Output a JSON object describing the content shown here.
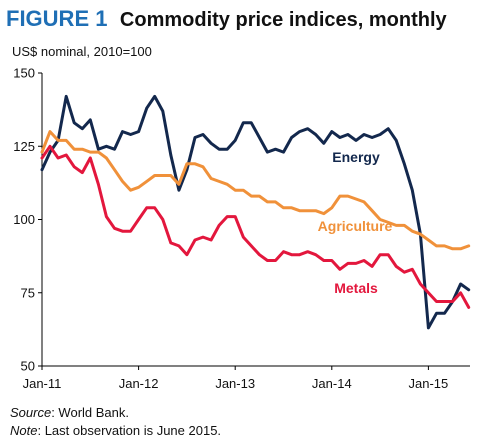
{
  "figure": {
    "label": "FIGURE 1",
    "title": "Commodity price indices, monthly",
    "units": "US$ nominal, 2010=100"
  },
  "footer": {
    "source_label": "Source",
    "source_text": ": World Bank.",
    "note_label": "Note",
    "note_text": ": Last observation is June 2015."
  },
  "chart_data": {
    "type": "line",
    "ylim": [
      50,
      150
    ],
    "yticks": [
      50,
      75,
      100,
      125,
      150
    ],
    "xticks": [
      "Jan-11",
      "Jan-12",
      "Jan-13",
      "Jan-14",
      "Jan-15"
    ],
    "x_start": "Jan-11",
    "x_end": "Jun-15",
    "grid": false,
    "series": [
      {
        "name": "Energy",
        "color": "#13284d",
        "values": [
          117,
          123,
          127,
          142,
          133,
          131,
          134,
          124,
          125,
          124,
          130,
          129,
          130,
          138,
          142,
          137,
          122,
          110,
          117,
          128,
          129,
          126,
          124,
          124,
          127,
          133,
          133,
          128,
          123,
          124,
          123,
          128,
          130,
          131,
          129,
          126,
          130,
          128,
          129,
          127,
          129,
          128,
          129,
          131,
          127,
          119,
          110,
          95,
          63,
          68,
          68,
          72,
          78,
          76
        ]
      },
      {
        "name": "Agriculture",
        "color": "#f0913a",
        "values": [
          123,
          130,
          127,
          127,
          124,
          124,
          123,
          123,
          121,
          117,
          113,
          110,
          111,
          113,
          115,
          115,
          115,
          112,
          119,
          119,
          118,
          114,
          113,
          112,
          110,
          110,
          108,
          108,
          106,
          106,
          104,
          104,
          103,
          103,
          103,
          102,
          104,
          108,
          108,
          107,
          106,
          103,
          100,
          99,
          98,
          98,
          96,
          95,
          93,
          91,
          91,
          90,
          90,
          91
        ]
      },
      {
        "name": "Metals",
        "color": "#e3173d",
        "values": [
          121,
          125,
          121,
          122,
          118,
          116,
          121,
          112,
          101,
          97,
          96,
          96,
          100,
          104,
          104,
          100,
          92,
          91,
          88,
          93,
          94,
          93,
          98,
          101,
          101,
          94,
          91,
          88,
          86,
          86,
          89,
          88,
          88,
          89,
          88,
          86,
          86,
          83,
          85,
          85,
          86,
          84,
          88,
          88,
          84,
          82,
          83,
          78,
          75,
          72,
          72,
          72,
          75,
          70
        ]
      }
    ]
  }
}
